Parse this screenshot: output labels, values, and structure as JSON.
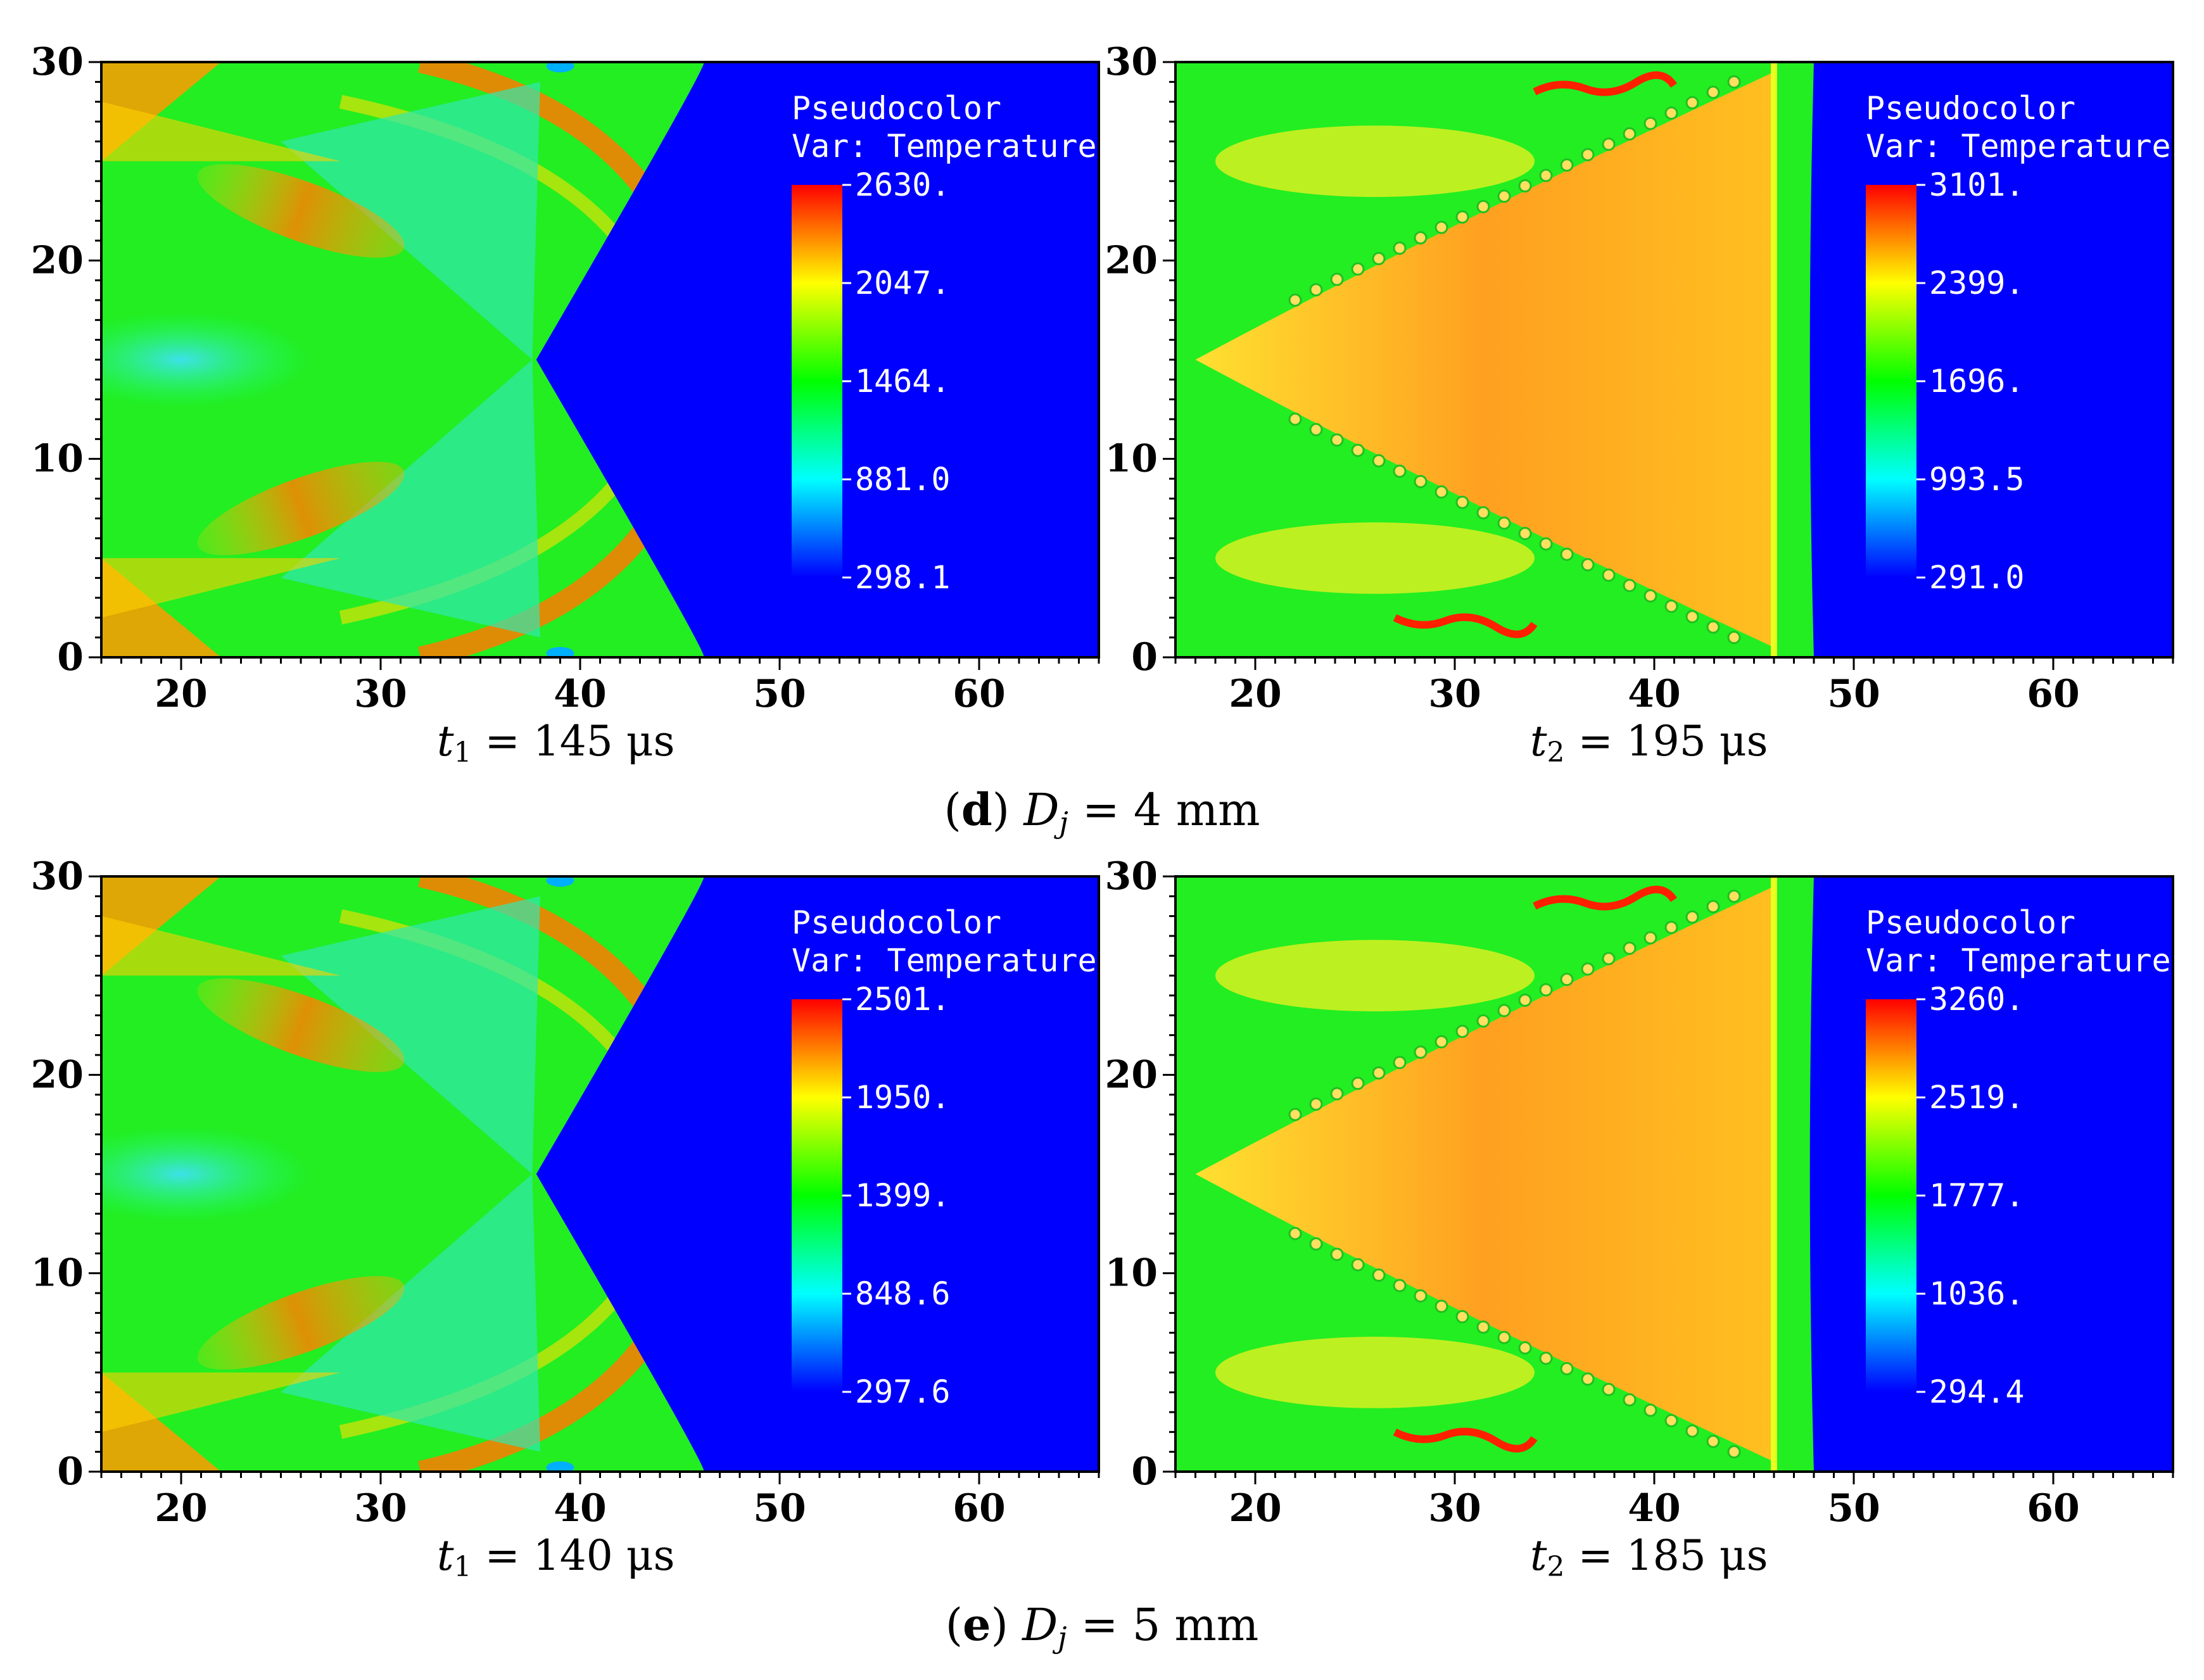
{
  "colormap": {
    "stops": [
      "#0000ff",
      "#00ffff",
      "#00ff00",
      "#ffff00",
      "#ff0000"
    ],
    "blue_bg": "#0000ff"
  },
  "figure": {
    "rows": [
      {
        "caption_letter": "d",
        "caption_var": "D",
        "caption_sub": "j",
        "caption_rest": " = 4 mm",
        "panels": [
          {
            "time_var": "t",
            "time_sub": "1",
            "time_rest": " = 145 μs",
            "variant": "t1",
            "legend_title": "Pseudocolor",
            "legend_var": "Var: Temperature",
            "legend_ticks": [
              "2630.",
              "2047.",
              "1464.",
              "881.0",
              "298.1"
            ]
          },
          {
            "time_var": "t",
            "time_sub": "2",
            "time_rest": " = 195 μs",
            "variant": "t2",
            "legend_title": "Pseudocolor",
            "legend_var": "Var: Temperature",
            "legend_ticks": [
              "3101.",
              "2399.",
              "1696.",
              "993.5",
              "291.0"
            ]
          }
        ]
      },
      {
        "caption_letter": "e",
        "caption_var": "D",
        "caption_sub": "j",
        "caption_rest": " = 5 mm",
        "panels": [
          {
            "time_var": "t",
            "time_sub": "1",
            "time_rest": " = 140 μs",
            "variant": "t1",
            "legend_title": "Pseudocolor",
            "legend_var": "Var: Temperature",
            "legend_ticks": [
              "2501.",
              "1950.",
              "1399.",
              "848.6",
              "297.6"
            ]
          },
          {
            "time_var": "t",
            "time_sub": "2",
            "time_rest": " = 185 μs",
            "variant": "t2",
            "legend_title": "Pseudocolor",
            "legend_var": "Var: Temperature",
            "legend_ticks": [
              "3260.",
              "2519.",
              "1777.",
              "1036.",
              "294.4"
            ]
          }
        ]
      }
    ]
  },
  "chart_data": [
    {
      "type": "heatmap",
      "title": "t1 = 145 μs",
      "xlim": [
        16,
        66
      ],
      "ylim": [
        0,
        30
      ],
      "xticks": [
        "20",
        "30",
        "40",
        "50",
        "60"
      ],
      "yticks": [
        "0",
        "10",
        "20",
        "30"
      ],
      "colorbar": {
        "label": "Temperature",
        "min": 298.1,
        "max": 2630.0,
        "ticks": [
          2630.0,
          2047.0,
          1464.0,
          881.0,
          298.1
        ]
      }
    },
    {
      "type": "heatmap",
      "title": "t2 = 195 μs",
      "xlim": [
        16,
        66
      ],
      "ylim": [
        0,
        30
      ],
      "xticks": [
        "20",
        "30",
        "40",
        "50",
        "60"
      ],
      "yticks": [
        "0",
        "10",
        "20",
        "30"
      ],
      "colorbar": {
        "label": "Temperature",
        "min": 291.0,
        "max": 3101.0,
        "ticks": [
          3101.0,
          2399.0,
          1696.0,
          993.5,
          291.0
        ]
      }
    },
    {
      "type": "heatmap",
      "title": "t1 = 140 μs",
      "xlim": [
        16,
        66
      ],
      "ylim": [
        0,
        30
      ],
      "xticks": [
        "20",
        "30",
        "40",
        "50",
        "60"
      ],
      "yticks": [
        "0",
        "10",
        "20",
        "30"
      ],
      "colorbar": {
        "label": "Temperature",
        "min": 297.6,
        "max": 2501.0,
        "ticks": [
          2501.0,
          1950.0,
          1399.0,
          848.6,
          297.6
        ]
      }
    },
    {
      "type": "heatmap",
      "title": "t2 = 185 μs",
      "xlim": [
        16,
        66
      ],
      "ylim": [
        0,
        30
      ],
      "xticks": [
        "20",
        "30",
        "40",
        "50",
        "60"
      ],
      "yticks": [
        "0",
        "10",
        "20",
        "30"
      ],
      "colorbar": {
        "label": "Temperature",
        "min": 294.4,
        "max": 3260.0,
        "ticks": [
          3260.0,
          2519.0,
          1777.0,
          1036.0,
          294.4
        ]
      }
    }
  ]
}
